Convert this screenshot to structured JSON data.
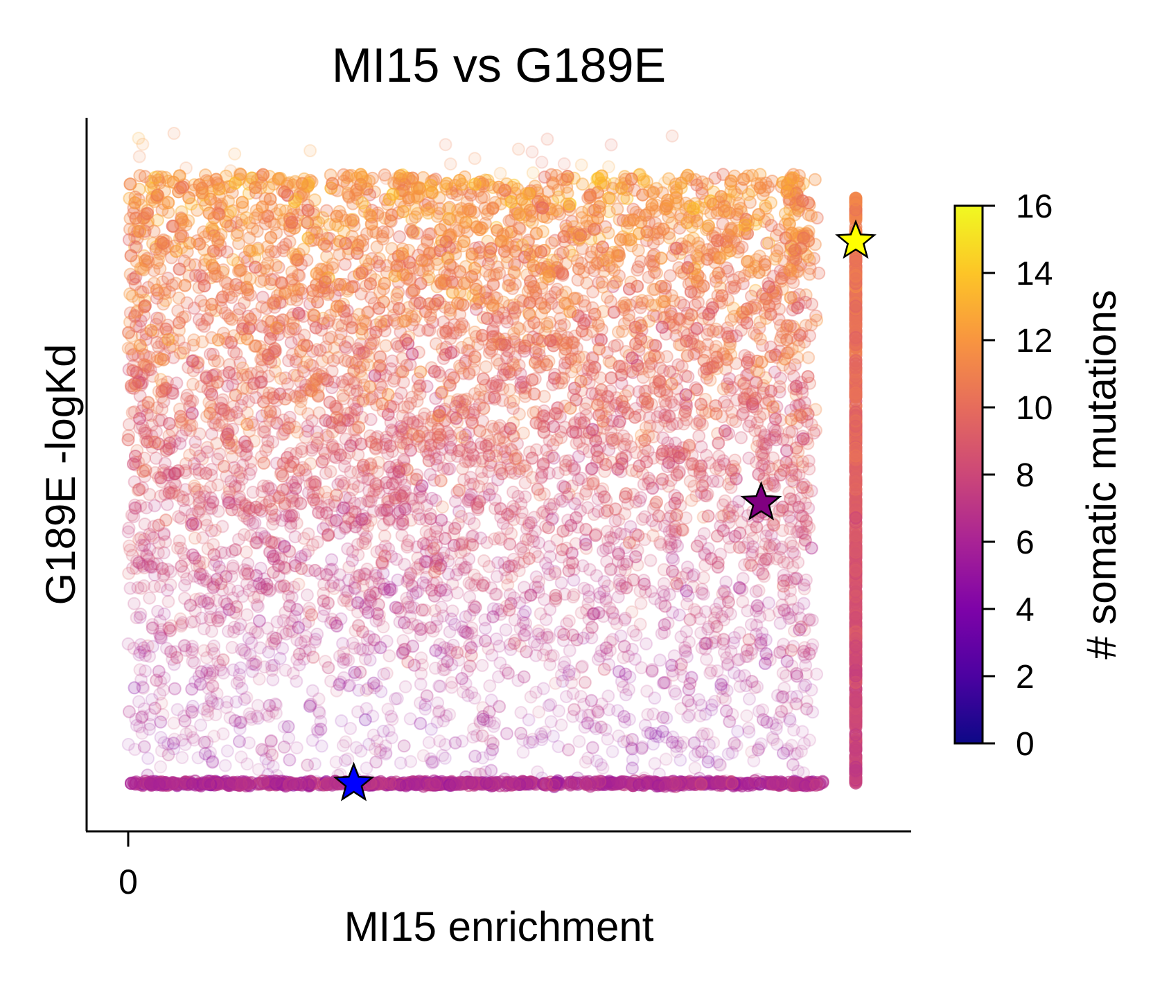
{
  "chart_data": {
    "type": "scatter",
    "title": "MI15 vs G189E",
    "xlabel": "MI15 enrichment",
    "ylabel": "G189E -logKd",
    "x_ticks": [
      "0"
    ],
    "y_ticks": [],
    "grid": false,
    "legend": "none",
    "colormap": "plasma",
    "colorbar": {
      "label": "# somatic mutations",
      "min": 0,
      "max": 16,
      "ticks": [
        "0",
        "2",
        "4",
        "6",
        "8",
        "10",
        "12",
        "14",
        "16"
      ],
      "position": "right"
    },
    "scatter_cloud": {
      "description_of_values": "dense cloud of several hundred thousand semi-transparent points; higher -logKd associated with more somatic mutations",
      "x_range": [
        0,
        0.95
      ],
      "y_range": [
        0,
        1
      ],
      "floor_row_y": 0,
      "right_column_x": 1.0,
      "right_column_y_range": [
        0,
        0.92
      ]
    },
    "highlighted_points": [
      {
        "marker": "star",
        "color": "#0000ff",
        "x": 0.31,
        "y": 0.0,
        "mutations": 0
      },
      {
        "marker": "star",
        "color": "#800080",
        "x": 0.87,
        "y": 0.44,
        "mutations": 6
      },
      {
        "marker": "star",
        "color": "#ffff00",
        "x": 1.0,
        "y": 0.85,
        "mutations": 16
      }
    ]
  }
}
